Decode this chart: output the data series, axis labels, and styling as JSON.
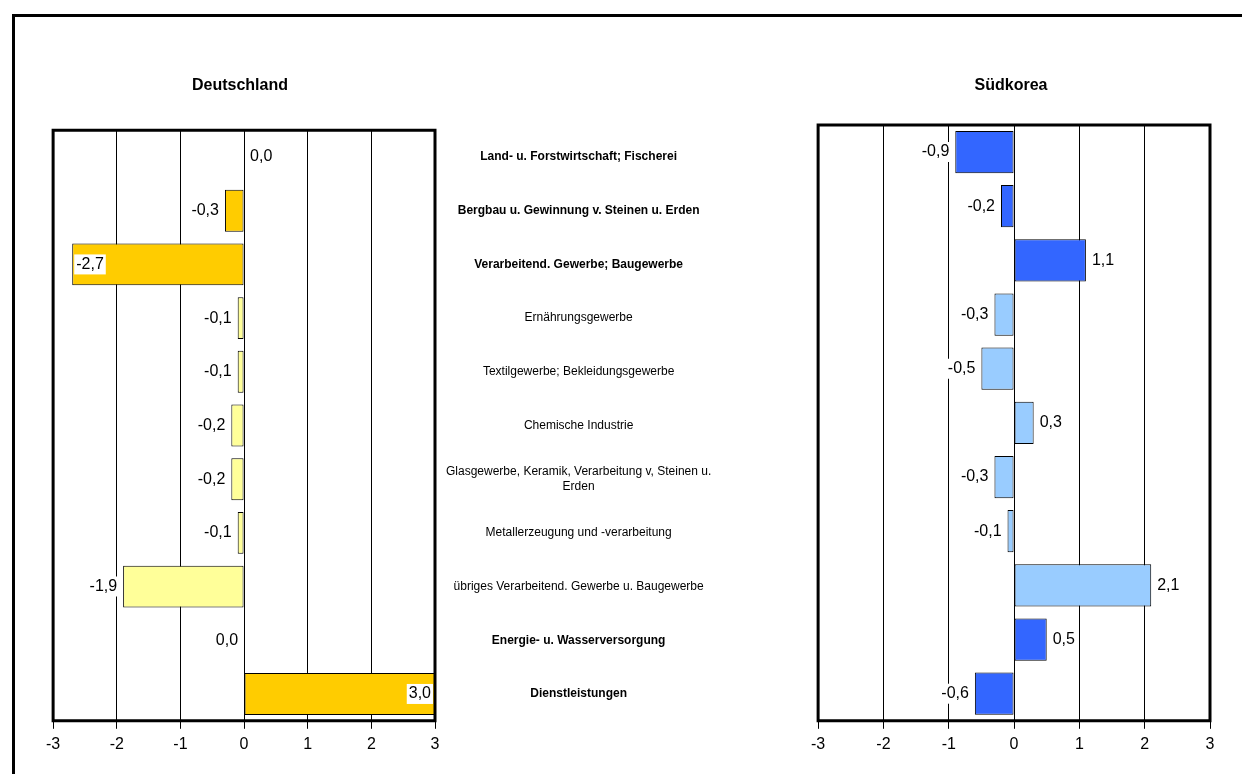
{
  "chart_data": [
    {
      "type": "bar",
      "orientation": "horizontal",
      "title": "Deutschland",
      "categories": [
        "Land- u. Forstwirtschaft; Fischerei",
        "Bergbau u. Gewinnung v. Steinen u. Erden",
        "Verarbeitend. Gewerbe; Baugewerbe",
        "Ernährungsgewerbe",
        "Textilgewerbe; Bekleidungsgewerbe",
        "Chemische Industrie",
        "Glasgewerbe, Keramik, Verarbeitung v, Steinen u. Erden",
        "Metallerzeugung und -verarbeitung",
        "übriges Verarbeitend. Gewerbe u. Baugewerbe",
        "Energie- u. Wasserversorgung",
        "Dienstleistungen"
      ],
      "values": [
        0.0,
        -0.3,
        -2.7,
        -0.1,
        -0.1,
        -0.2,
        -0.2,
        -0.1,
        -1.9,
        0.0,
        3.0
      ],
      "colors": [
        "#ffcc00",
        "#ffcc00",
        "#ffcc00",
        "#ffff99",
        "#ffff99",
        "#ffff99",
        "#ffff99",
        "#ffff99",
        "#ffff99",
        "#ffcc00",
        "#ffcc00"
      ],
      "value_labels": [
        "0,0",
        "-0,3",
        "-2,7",
        "-0,1",
        "-0,1",
        "-0,2",
        "-0,2",
        "-0,1",
        "-1,9",
        "0,0",
        "3,0"
      ],
      "xlim": [
        -3,
        3
      ],
      "xticks": [
        -3,
        -2,
        -1,
        0,
        1,
        2,
        3
      ],
      "grid": "x",
      "legend": false
    },
    {
      "type": "bar",
      "orientation": "horizontal",
      "title": "Südkorea",
      "categories": [
        "Land- u. Forstwirtschaft; Fischerei",
        "Bergbau u. Gewinnung v. Steinen u. Erden",
        "Verarbeitend. Gewerbe; Baugewerbe",
        "Ernährungsgewerbe",
        "Textilgewerbe; Bekleidungsgewerbe",
        "Chemische Industrie",
        "Glasgewerbe, Keramik, Verarbeitung v, Steinen u. Erden",
        "Metallerzeugung und -verarbeitung",
        "übriges Verarbeitend. Gewerbe u. Baugewerbe",
        "Energie- u. Wasserversorgung",
        "Dienstleistungen"
      ],
      "values": [
        -0.9,
        -0.2,
        1.1,
        -0.3,
        -0.5,
        0.3,
        -0.3,
        -0.1,
        2.1,
        0.5,
        -0.6
      ],
      "colors": [
        "#3366ff",
        "#3366ff",
        "#3366ff",
        "#99ccff",
        "#99ccff",
        "#99ccff",
        "#99ccff",
        "#99ccff",
        "#99ccff",
        "#3366ff",
        "#3366ff"
      ],
      "value_labels": [
        "-0,9",
        "-0,2",
        "1,1",
        "-0,3",
        "-0,5",
        "0,3",
        "-0,3",
        "-0,1",
        "2,1",
        "0,5",
        "-0,6"
      ],
      "xlim": [
        -3,
        3
      ],
      "xticks": [
        -3,
        -2,
        -1,
        0,
        1,
        2,
        3
      ],
      "grid": "x",
      "legend": false,
      "tick_labels": "x"
    }
  ]
}
